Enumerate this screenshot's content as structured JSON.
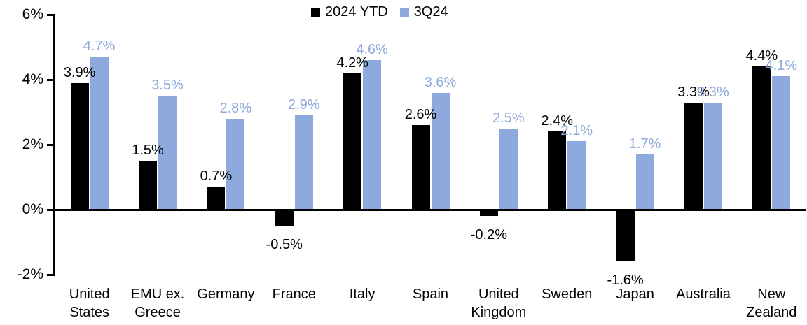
{
  "chart_data": {
    "type": "bar",
    "title": "",
    "categories": [
      "United States",
      "EMU ex. Greece",
      "Germany",
      "France",
      "Italy",
      "Spain",
      "United Kingdom",
      "Sweden",
      "Japan",
      "Australia",
      "New Zealand"
    ],
    "series": [
      {
        "name": "2024 YTD",
        "color": "#000000",
        "values": [
          3.9,
          1.5,
          0.7,
          -0.5,
          4.2,
          2.6,
          -0.2,
          2.4,
          -1.6,
          3.3,
          4.4
        ]
      },
      {
        "name": "3Q24",
        "color": "#8EA9DB",
        "values": [
          4.7,
          3.5,
          2.8,
          2.9,
          4.6,
          3.6,
          2.5,
          2.1,
          1.7,
          3.3,
          4.1
        ]
      }
    ],
    "data_label_format": "one-decimal-percent",
    "data_labels_visible": true,
    "y_axis": {
      "min": -2,
      "max": 6,
      "tick_step": 2,
      "tick_values": [
        6,
        4,
        2,
        0,
        -2
      ],
      "tick_labels": [
        "6%",
        "4%",
        "2%",
        "0%",
        "-2%"
      ],
      "unit": "%"
    },
    "legend_position": "top-center",
    "grid": false,
    "background_color": "#FFFFFF",
    "axis_color": "#000000"
  }
}
